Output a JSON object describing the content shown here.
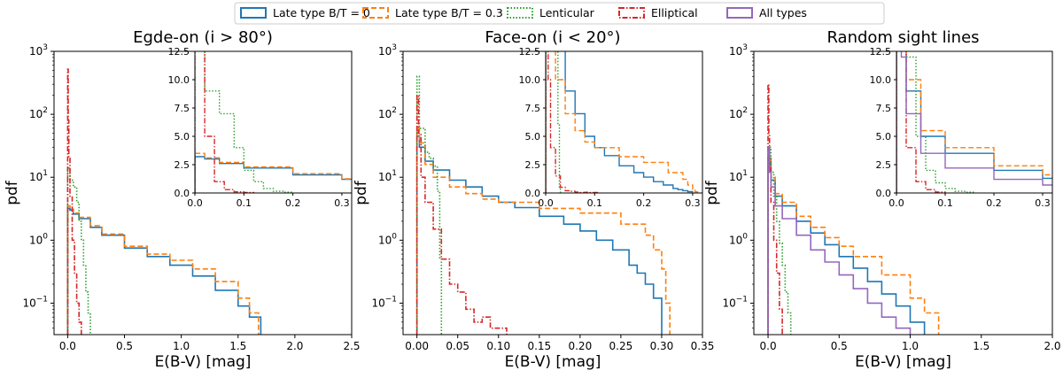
{
  "legend": {
    "items": [
      {
        "label": "Late type B/T = 0",
        "color": "#1f77b4",
        "dash": "solid"
      },
      {
        "label": "Late type B/T = 0.3",
        "color": "#ff7f0e",
        "dash": "dashed"
      },
      {
        "label": "Lenticular",
        "color": "#2ca02c",
        "dash": "dotted"
      },
      {
        "label": "Elliptical",
        "color": "#d62728",
        "dash": "dashdot"
      },
      {
        "label": "All types",
        "color": "#9467bd",
        "dash": "solid"
      }
    ]
  },
  "chart_data": [
    {
      "type": "line",
      "title": "Egde-on (i > 80°)",
      "xlabel": "E(B-V) [mag]",
      "ylabel": "pdf",
      "xlim": [
        -0.12,
        2.5
      ],
      "ylim_log10": [
        -1.5,
        3
      ],
      "yscale": "log",
      "xticks": [
        "0.0",
        "0.5",
        "1.0",
        "1.5",
        "2.0",
        "2.5"
      ],
      "series": [
        {
          "name": "Late type B/T = 0",
          "color": "#1f77b4",
          "x": [
            0,
            0.02,
            0.05,
            0.1,
            0.2,
            0.3,
            0.5,
            0.7,
            0.9,
            1.1,
            1.3,
            1.5,
            1.6,
            1.7
          ],
          "y": [
            3.2,
            3,
            2.6,
            2.2,
            1.6,
            1.2,
            0.75,
            0.55,
            0.4,
            0.27,
            0.16,
            0.09,
            0.06,
            0.03
          ]
        },
        {
          "name": "Late type B/T = 0.3",
          "color": "#ff7f0e",
          "x": [
            0,
            0.02,
            0.05,
            0.1,
            0.2,
            0.3,
            0.5,
            0.7,
            0.9,
            1.1,
            1.3,
            1.5,
            1.6,
            1.68
          ],
          "y": [
            3.5,
            3.1,
            2.7,
            2.3,
            1.7,
            1.25,
            0.8,
            0.6,
            0.48,
            0.35,
            0.22,
            0.12,
            0.07,
            0.03
          ]
        },
        {
          "name": "Lenticular",
          "color": "#2ca02c",
          "x": [
            0,
            0.02,
            0.05,
            0.08,
            0.1,
            0.12,
            0.14,
            0.16,
            0.18,
            0.2
          ],
          "y": [
            14,
            9,
            7,
            4,
            2,
            1,
            0.4,
            0.15,
            0.07,
            0.03
          ]
        },
        {
          "name": "Elliptical",
          "color": "#d62728",
          "x": [
            0,
            0.005,
            0.01,
            0.02,
            0.04,
            0.06,
            0.08,
            0.1,
            0.12
          ],
          "y": [
            520,
            80,
            20,
            5,
            1,
            0.3,
            0.1,
            0.05,
            0.03
          ]
        }
      ],
      "inset": {
        "xlim": [
          0,
          0.32
        ],
        "ylim": [
          0,
          12.5
        ],
        "xticks": [
          "0.0",
          "0.1",
          "0.2",
          "0.3"
        ],
        "yticks": [
          "0.0",
          "2.5",
          "5.0",
          "7.5",
          "10.0",
          "12.5"
        ]
      }
    },
    {
      "type": "line",
      "title": "Face-on (i < 20°)",
      "xlabel": "E(B-V) [mag]",
      "ylabel": "pdf",
      "xlim": [
        -0.017,
        0.35
      ],
      "ylim_log10": [
        -1.5,
        3
      ],
      "yscale": "log",
      "xticks": [
        "0.00",
        "0.05",
        "0.10",
        "0.15",
        "0.20",
        "0.25",
        "0.30",
        "0.35"
      ],
      "series": [
        {
          "name": "Late type B/T = 0",
          "color": "#1f77b4",
          "x": [
            0,
            0.003,
            0.01,
            0.02,
            0.04,
            0.06,
            0.08,
            0.1,
            0.12,
            0.15,
            0.18,
            0.2,
            0.22,
            0.24,
            0.26,
            0.27,
            0.28,
            0.29,
            0.3
          ],
          "y": [
            45,
            30,
            18,
            13,
            9,
            7,
            5,
            4,
            3.3,
            2.4,
            1.8,
            1.4,
            1,
            0.7,
            0.4,
            0.3,
            0.2,
            0.12,
            0.05
          ]
        },
        {
          "name": "Late type B/T = 0.3",
          "color": "#ff7f0e",
          "x": [
            0,
            0.003,
            0.01,
            0.02,
            0.04,
            0.06,
            0.08,
            0.1,
            0.15,
            0.2,
            0.25,
            0.28,
            0.29,
            0.3,
            0.305,
            0.31
          ],
          "y": [
            60,
            35,
            16,
            10,
            7,
            5.5,
            4.5,
            4,
            3.2,
            2.7,
            1.8,
            1.2,
            0.7,
            0.35,
            0.1,
            0.03
          ]
        },
        {
          "name": "Lenticular",
          "color": "#2ca02c",
          "x": [
            0,
            0.003,
            0.01,
            0.015,
            0.02,
            0.025,
            0.028,
            0.03
          ],
          "y": [
            400,
            60,
            25,
            20,
            15,
            6,
            0.5,
            0.03
          ]
        },
        {
          "name": "Elliptical",
          "color": "#d62728",
          "x": [
            0,
            0.002,
            0.005,
            0.01,
            0.02,
            0.03,
            0.04,
            0.05,
            0.06,
            0.07,
            0.08,
            0.09,
            0.1,
            0.11
          ],
          "y": [
            200,
            50,
            10,
            4,
            1.5,
            0.5,
            0.2,
            0.15,
            0.08,
            0.05,
            0.06,
            0.04,
            0.04,
            0.03
          ]
        }
      ],
      "inset": {
        "xlim": [
          0,
          0.32
        ],
        "ylim": [
          0,
          12.5
        ],
        "xticks": [
          "0.0",
          "0.1",
          "0.2",
          "0.3"
        ],
        "yticks": [
          "0.0",
          "2.5",
          "5.0",
          "7.5",
          "10.0",
          "12.5"
        ]
      }
    },
    {
      "type": "line",
      "title": "Random sight lines",
      "xlabel": "E(B-V) [mag]",
      "ylabel": "pdf",
      "xlim": [
        -0.1,
        2.0
      ],
      "ylim_log10": [
        -1.5,
        3
      ],
      "yscale": "log",
      "xticks": [
        "0.0",
        "0.5",
        "1.0",
        "1.5",
        "2.0"
      ],
      "series": [
        {
          "name": "Late type B/T = 0",
          "color": "#1f77b4",
          "x": [
            0,
            0.02,
            0.05,
            0.1,
            0.2,
            0.3,
            0.4,
            0.5,
            0.6,
            0.7,
            0.8,
            0.9,
            1.0,
            1.1
          ],
          "y": [
            20,
            9,
            5,
            3.5,
            2,
            1.3,
            0.85,
            0.55,
            0.36,
            0.22,
            0.14,
            0.09,
            0.05,
            0.03
          ]
        },
        {
          "name": "Late type B/T = 0.3",
          "color": "#ff7f0e",
          "x": [
            0,
            0.02,
            0.05,
            0.1,
            0.2,
            0.3,
            0.4,
            0.5,
            0.6,
            0.8,
            1.0,
            1.1,
            1.2
          ],
          "y": [
            22,
            10,
            5.5,
            4,
            2.4,
            1.6,
            1.1,
            0.8,
            0.55,
            0.28,
            0.12,
            0.07,
            0.03
          ]
        },
        {
          "name": "Lenticular",
          "color": "#2ca02c",
          "x": [
            0,
            0.02,
            0.04,
            0.06,
            0.08,
            0.1,
            0.12,
            0.14,
            0.16
          ],
          "y": [
            30,
            12,
            5,
            2,
            0.9,
            0.4,
            0.15,
            0.07,
            0.03
          ]
        },
        {
          "name": "Elliptical",
          "color": "#d62728",
          "x": [
            0,
            0.005,
            0.01,
            0.02,
            0.04,
            0.06,
            0.08,
            0.1
          ],
          "y": [
            300,
            50,
            15,
            4,
            1,
            0.3,
            0.08,
            0.03
          ]
        },
        {
          "name": "All types",
          "color": "#9467bd",
          "x": [
            -0.01,
            0,
            0.01,
            0.02,
            0.05,
            0.1,
            0.2,
            0.3,
            0.4,
            0.5,
            0.6,
            0.7,
            0.8,
            0.9,
            1.0
          ],
          "y": [
            0.03,
            30,
            12,
            7,
            3.5,
            2.2,
            1.2,
            0.7,
            0.45,
            0.28,
            0.17,
            0.1,
            0.06,
            0.04,
            0.03
          ]
        }
      ],
      "inset": {
        "xlim": [
          0,
          0.32
        ],
        "ylim": [
          0,
          12.5
        ],
        "xticks": [
          "0.0",
          "0.1",
          "0.2",
          "0.3"
        ],
        "yticks": [
          "0.0",
          "2.5",
          "5.0",
          "7.5",
          "10.0",
          "12.5"
        ]
      }
    }
  ]
}
